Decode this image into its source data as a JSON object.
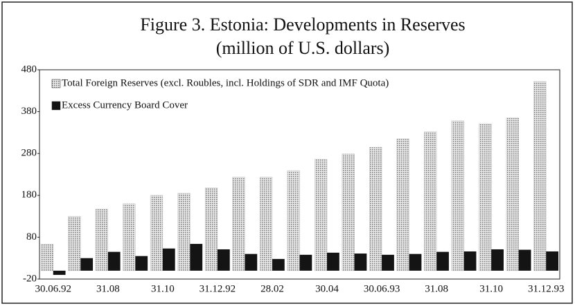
{
  "chart_data": {
    "type": "bar",
    "title": "Figure 3. Estonia:  Developments in Reserves",
    "subtitle": "(million of U.S. dollars)",
    "categories": [
      "30.06.92",
      null,
      "31.08",
      null,
      "31.10",
      null,
      "31.12.92",
      null,
      "28.02",
      null,
      "30.04",
      null,
      "30.06.93",
      null,
      "31.08",
      null,
      "31.10",
      null,
      "31.12.93"
    ],
    "series": [
      {
        "name": "Total Foreign Reserves (excl. Roubles, incl. Holdings of SDR and IMF Quota)",
        "color": "#c4c4c4",
        "values": [
          63,
          130,
          147,
          160,
          180,
          185,
          198,
          224,
          224,
          239,
          266,
          279,
          295,
          315,
          332,
          358,
          351,
          365,
          452
        ]
      },
      {
        "name": "Excess Currency Board Cover",
        "color": "#141414",
        "values": [
          -10,
          30,
          45,
          35,
          53,
          64,
          51,
          40,
          28,
          38,
          43,
          41,
          38,
          40,
          45,
          46,
          51,
          50,
          46
        ]
      }
    ],
    "ylim": [
      -20,
      480
    ],
    "yticks": [
      -20,
      80,
      180,
      280,
      380,
      480
    ],
    "grid": false,
    "legend": "top-left"
  }
}
